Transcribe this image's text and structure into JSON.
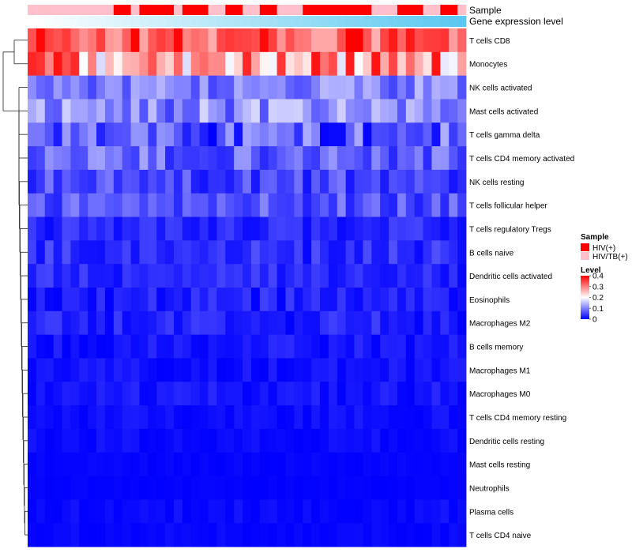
{
  "chart_data": {
    "type": "heatmap",
    "title": "",
    "annotations": {
      "sample_track_label": "Sample",
      "expression_track_label": "Gene expression level",
      "sample_groups": [
        "HIV(+)",
        "HIV/TB(+)"
      ],
      "sample_colors": {
        "HIV(+)": "#ff0000",
        "HIV/TB(+)": "#ffc0cb"
      },
      "column_samples": [
        "HIV/TB(+)",
        "HIV/TB(+)",
        "HIV/TB(+)",
        "HIV/TB(+)",
        "HIV/TB(+)",
        "HIV/TB(+)",
        "HIV/TB(+)",
        "HIV/TB(+)",
        "HIV/TB(+)",
        "HIV/TB(+)",
        "HIV(+)",
        "HIV(+)",
        "HIV/TB(+)",
        "HIV(+)",
        "HIV(+)",
        "HIV(+)",
        "HIV(+)",
        "HIV/TB(+)",
        "HIV(+)",
        "HIV(+)",
        "HIV(+)",
        "HIV/TB(+)",
        "HIV/TB(+)",
        "HIV(+)",
        "HIV(+)",
        "HIV/TB(+)",
        "HIV/TB(+)",
        "HIV(+)",
        "HIV(+)",
        "HIV/TB(+)",
        "HIV/TB(+)",
        "HIV/TB(+)",
        "HIV(+)",
        "HIV(+)",
        "HIV(+)",
        "HIV(+)",
        "HIV(+)",
        "HIV(+)",
        "HIV(+)",
        "HIV(+)",
        "HIV/TB(+)",
        "HIV/TB(+)",
        "HIV/TB(+)",
        "HIV(+)",
        "HIV(+)",
        "HIV(+)",
        "HIV/TB(+)",
        "HIV/TB(+)",
        "HIV(+)",
        "HIV(+)",
        "HIV/TB(+)"
      ],
      "column_expression": [
        0.0,
        0.02,
        0.04,
        0.06,
        0.08,
        0.1,
        0.12,
        0.14,
        0.16,
        0.18,
        0.2,
        0.22,
        0.24,
        0.26,
        0.28,
        0.3,
        0.32,
        0.34,
        0.36,
        0.38,
        0.4,
        0.42,
        0.44,
        0.46,
        0.48,
        0.5,
        0.52,
        0.54,
        0.56,
        0.58,
        0.6,
        0.62,
        0.64,
        0.66,
        0.68,
        0.7,
        0.72,
        0.74,
        0.76,
        0.78,
        0.8,
        0.82,
        0.84,
        0.86,
        0.88,
        0.9,
        0.92,
        0.94,
        0.96,
        0.98,
        1.0
      ],
      "expression_colors": [
        "#ffffff",
        "#5ac8f0"
      ]
    },
    "rows": [
      "T cells CD8",
      "Monocytes",
      "NK cells activated",
      "Mast cells activated",
      "T cells gamma delta",
      "T cells CD4 memory activated",
      "NK cells resting",
      "T cells follicular helper",
      "T cells regulatory  Tregs",
      "B cells naive",
      "Dendritic cells activated",
      "Eosinophils",
      "Macrophages M2",
      "B cells memory",
      "Macrophages M1",
      "Macrophages M0",
      "T cells CD4 memory resting",
      "Dendritic cells resting",
      "Mast cells resting",
      "Neutrophils",
      "Plasma cells",
      "T cells CD4 naive"
    ],
    "n_columns": 51,
    "row_means": [
      0.33,
      0.28,
      0.1,
      0.11,
      0.07,
      0.08,
      0.055,
      0.065,
      0.03,
      0.035,
      0.03,
      0.025,
      0.025,
      0.015,
      0.012,
      0.014,
      0.01,
      0.008,
      0.003,
      0.002,
      0.006,
      0.004
    ],
    "row_spread": [
      0.08,
      0.11,
      0.05,
      0.06,
      0.07,
      0.05,
      0.04,
      0.04,
      0.025,
      0.03,
      0.025,
      0.025,
      0.025,
      0.02,
      0.015,
      0.018,
      0.012,
      0.01,
      0.004,
      0.003,
      0.012,
      0.008
    ],
    "value_range": [
      0,
      0.4
    ],
    "colorscale": [
      "#0000ff",
      "#ffffff",
      "#ff0000"
    ],
    "legend": {
      "sample_title": "Sample",
      "level_title": "Level",
      "level_ticks": [
        "0.4",
        "0.3",
        "0.2",
        "0.1",
        "0"
      ],
      "level_tick_values": [
        0.4,
        0.3,
        0.2,
        0.1,
        0
      ]
    },
    "dendrogram": "rows clustered (left)"
  }
}
